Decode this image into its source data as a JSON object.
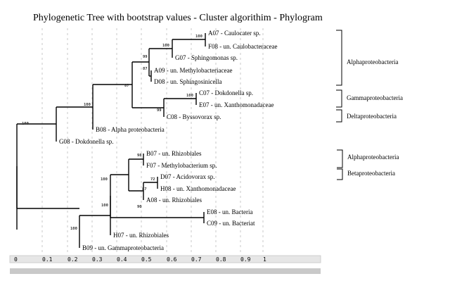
{
  "title": "Phylogenetic Tree with bootstrap values - Cluster algorithim - Phylogram",
  "scale": {
    "ticks": [
      "0",
      "0.1",
      "0.2",
      "0.3",
      "0.4",
      "0.5",
      "0.6",
      "0.7",
      "0.8",
      "0.9",
      "1"
    ]
  },
  "leaves": [
    {
      "label": "A07 - Caulocater sp."
    },
    {
      "label": "F08 - un. Caulobacteraceae"
    },
    {
      "label": "G07 - Sphingomonas sp."
    },
    {
      "label": "A09 - un. Methylobacteriaceae"
    },
    {
      "label": "D08 - un. Sphingosinicella"
    },
    {
      "label": "C07 - Dokdonella sp."
    },
    {
      "label": "E07 - un. Xanthomonadaceae"
    },
    {
      "label": "C08 - Byssovorax sp."
    },
    {
      "label": "B08 - Alpha proteobacteria"
    },
    {
      "label": "G08 - Dokdonella sp."
    },
    {
      "label": "B07 - un. Rhizobiales"
    },
    {
      "label": "F07 - Methylobacterium sp."
    },
    {
      "label": "D07 - Acidovorax sp."
    },
    {
      "label": "H08 - un. Xanthomonadaceae"
    },
    {
      "label": "A08 - un. Rhizobiales"
    },
    {
      "label": "E08 - un. Bacteria"
    },
    {
      "label": "C09 - un. Bacteriat"
    },
    {
      "label": "H07 - un. Rhizobiales"
    },
    {
      "label": "B09 - un. Gammaproteobacteria"
    }
  ],
  "groups": [
    {
      "label": "Alphaproteobacteria"
    },
    {
      "label": "Gammaproteobacteria"
    },
    {
      "label": "Deltaproteobacteria"
    },
    {
      "label": "Alphaproteobacteria"
    },
    {
      "label": "Betaproteobacteria"
    }
  ],
  "bootstrap": [
    "100",
    "100",
    "99",
    "87",
    "87",
    "100",
    "99",
    "100",
    "100",
    "98",
    "72",
    "87",
    "90",
    "100",
    "100",
    "100"
  ]
}
